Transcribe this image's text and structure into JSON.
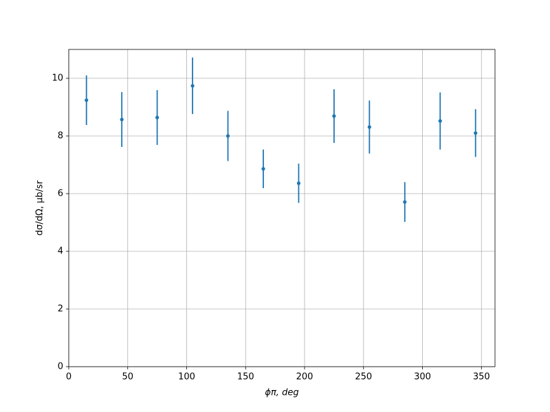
{
  "chart_data": {
    "type": "errorbar",
    "xlabel": "ϕπ, deg",
    "ylabel": "dσ/dΩ, μb/sr",
    "x": [
      15,
      45,
      75,
      105,
      135,
      165,
      195,
      225,
      255,
      285,
      315,
      345
    ],
    "series": [
      {
        "color": "#1f77b4",
        "values": [
          9.24,
          8.57,
          8.64,
          9.74,
          8.0,
          6.86,
          6.36,
          8.69,
          8.31,
          5.71,
          8.52,
          8.1
        ],
        "errors": [
          0.86,
          0.95,
          0.95,
          0.98,
          0.87,
          0.67,
          0.68,
          0.93,
          0.92,
          0.69,
          0.99,
          0.83
        ]
      }
    ],
    "xlim": [
      0,
      361.5
    ],
    "ylim": [
      0,
      11
    ],
    "xticks": [
      0,
      50,
      100,
      150,
      200,
      250,
      300,
      350
    ],
    "yticks": [
      0,
      2,
      4,
      6,
      8,
      10
    ],
    "grid": true
  }
}
